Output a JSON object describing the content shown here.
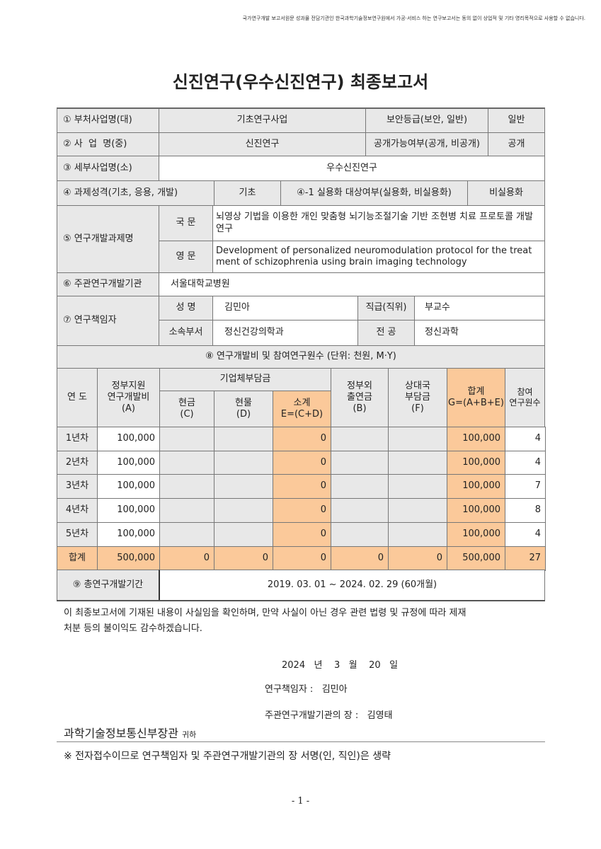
{
  "notice": "국가연구개발 보고서원문 성과물 전담기관인 한국과학기술정보연구원에서 가공·서비스 하는 연구보고서는 동의 없이 상업적 및 기타 영리목적으로 사용할 수 없습니다.",
  "title": "신진연구(우수신진연구) 최종보고서",
  "info": {
    "r1_label": "① 부처사업명(대)",
    "r1_value": "기초연구사업",
    "r1_sec_label": "보안등급(보안, 일반)",
    "r1_sec_value": "일반",
    "r2_label": "② 사  업  명(중)",
    "r2_value": "신진연구",
    "r2_pub_label": "공개가능여부(공개, 비공개)",
    "r2_pub_value": "공개",
    "r3_label": "③ 세부사업명(소)",
    "r3_value": "우수신진연구",
    "r4_label": "④ 과제성격(기초, 응용, 개발)",
    "r4_value": "기초",
    "r4_prac_label": "④-1 실용화 대상여부(실용화, 비실용화)",
    "r4_prac_value": "비실용화",
    "r5_label": "⑤ 연구개발과제명",
    "r5_kor_label": "국 문",
    "r5_kor_value": "뇌영상 기법을 이용한 개인 맞춤형 뇌기능조절기술 기반 조현병 치료 프로토콜 개발 연구",
    "r5_eng_label": "영 문",
    "r5_eng_value": "Development of personalized neuromodulation protocol for the treatment of schizophrenia using brain imaging technology",
    "r6_label": "⑥ 주관연구개발기관",
    "r6_value": "서울대학교병원",
    "r7_label": "⑦ 연구책임자",
    "r7_name_label": "성 명",
    "r7_name_value": "김민아",
    "r7_pos_label": "직급(직위)",
    "r7_pos_value": "부교수",
    "r7_dept_label": "소속부서",
    "r7_dept_value": "정신건강의학과",
    "r7_major_label": "전 공",
    "r7_major_value": "정신과학"
  },
  "budget": {
    "title": "⑧ 연구개발비 및 참여연구원수 (단위: 천원, M·Y)",
    "h_year": "연 도",
    "h_a": "정부지원\n연구개발비\n(A)",
    "h_corp": "기업체부담금",
    "h_c": "현금\n(C)",
    "h_d": "현물\n(D)",
    "h_e": "소계\nE=(C+D)",
    "h_b": "정부외\n출연금\n(B)",
    "h_f": "상대국\n부담금\n(F)",
    "h_g": "합계\nG=(A+B+E)",
    "h_n": "참여\n연구원수",
    "rows": [
      [
        "1년차",
        "100,000",
        "",
        "",
        "0",
        "",
        "",
        "100,000",
        "4"
      ],
      [
        "2년차",
        "100,000",
        "",
        "",
        "0",
        "",
        "",
        "100,000",
        "4"
      ],
      [
        "3년차",
        "100,000",
        "",
        "",
        "0",
        "",
        "",
        "100,000",
        "7"
      ],
      [
        "4년차",
        "100,000",
        "",
        "",
        "0",
        "",
        "",
        "100,000",
        "8"
      ],
      [
        "5년차",
        "100,000",
        "",
        "",
        "0",
        "",
        "",
        "100,000",
        "4"
      ]
    ],
    "total": [
      "합계",
      "500,000",
      "0",
      "0",
      "0",
      "0",
      "0",
      "500,000",
      "27"
    ]
  },
  "period": {
    "label": "⑨ 총연구개발기간",
    "value": "2019. 03. 01 ~ 2024. 02. 29  (60개월)"
  },
  "statement1": "이 최종보고서에 기재된 내용이 사실임을 확인하며, 만약 사실이 아닌 경우 관련 법령 및 규정에 따라 제재",
  "statement2": "처분 등의 불이익도 감수하겠습니다.",
  "date": "2024   년    3   월    20   일",
  "pi": "연구책임자 :   김민아",
  "head": "주관연구개발기관의 장 :   김영태",
  "recipient": "과학기술정보통신부장관",
  "recipient_suffix": "귀하",
  "note": "※ 전자접수이므로 연구책임자 및 주관연구개발기관의 장 서명(인, 직인)은 생략",
  "page_number": "- 1 -"
}
